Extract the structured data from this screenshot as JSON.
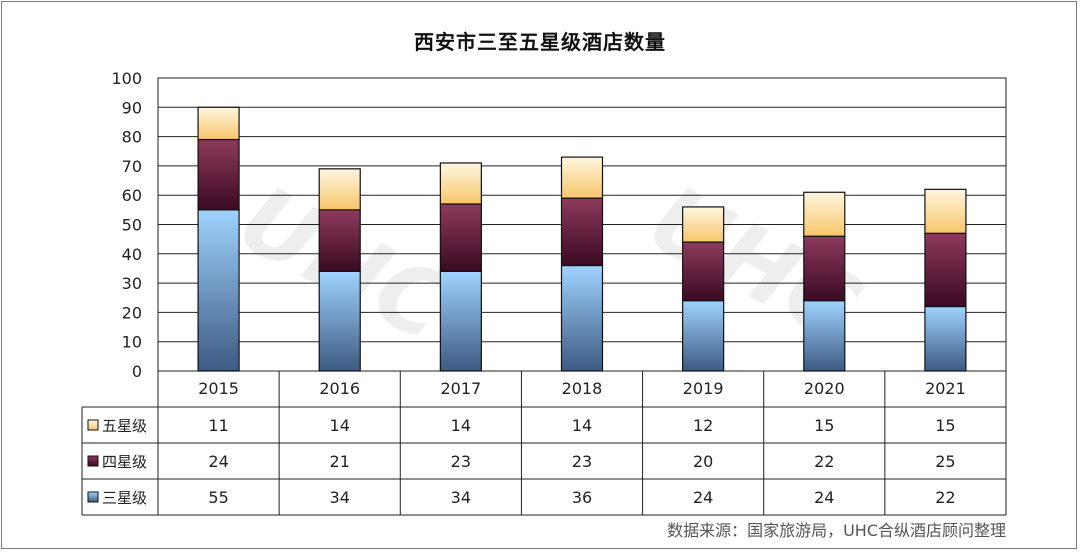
{
  "chart_data": {
    "type": "bar",
    "stacked": true,
    "title": "西安市三至五星级酒店数量",
    "categories": [
      "2015",
      "2016",
      "2017",
      "2018",
      "2019",
      "2020",
      "2021"
    ],
    "ylim": [
      0,
      100
    ],
    "yticks": [
      0,
      10,
      20,
      30,
      40,
      50,
      60,
      70,
      80,
      90,
      100
    ],
    "grid": true,
    "legend": "data-table-left",
    "series": [
      {
        "name": "三星级",
        "values": [
          55,
          34,
          34,
          36,
          24,
          24,
          22
        ],
        "color_top": "#9fd3ff",
        "color_bottom": "#3d5a82"
      },
      {
        "name": "四星级",
        "values": [
          24,
          21,
          23,
          23,
          20,
          22,
          25
        ],
        "color_top": "#8e3a5c",
        "color_bottom": "#3a0a22"
      },
      {
        "name": "五星级",
        "values": [
          11,
          14,
          14,
          14,
          12,
          15,
          15
        ],
        "color_top": "#fff6e0",
        "color_bottom": "#f7c66a"
      }
    ],
    "table_row_order": [
      "五星级",
      "四星级",
      "三星级"
    ]
  },
  "source_note": "数据来源：国家旅游局，UHC合纵酒店顾问整理",
  "watermark_text": "UHC"
}
